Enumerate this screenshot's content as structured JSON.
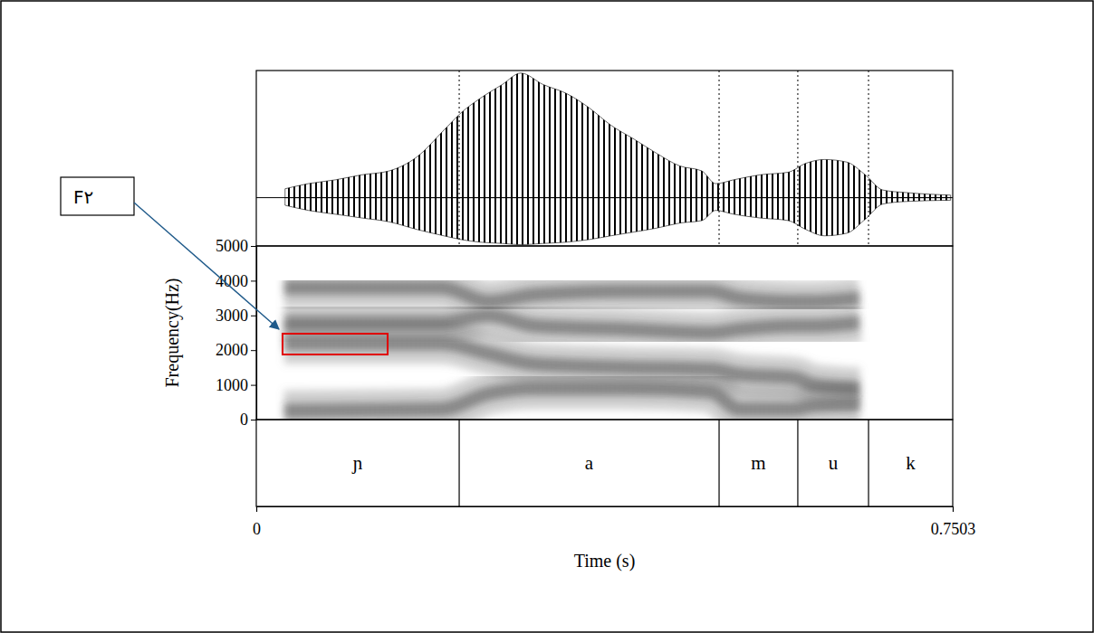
{
  "chart_data": {
    "type": "spectrogram",
    "ylabel": "Frequency(Hz)",
    "xlabel": "Time (s)",
    "xlim": [
      0,
      0.7503
    ],
    "xticks": [
      0,
      0.7503
    ],
    "ylim": [
      0,
      5000
    ],
    "yticks": [
      0,
      1000,
      2000,
      3000,
      4000,
      5000
    ],
    "segments": {
      "labels": [
        "ɲ",
        "a",
        "m",
        "u",
        "k"
      ],
      "boundaries": [
        0.2186,
        0.4986,
        0.5834,
        0.6596
      ]
    },
    "waveform": {
      "ylim": [
        -0.38,
        1
      ],
      "x": [
        0.031,
        0.056,
        0.085,
        0.114,
        0.143,
        0.173,
        0.202,
        0.221,
        0.241,
        0.265,
        0.285,
        0.309,
        0.334,
        0.358,
        0.382,
        0.407,
        0.431,
        0.456,
        0.48,
        0.495,
        0.514,
        0.543,
        0.573,
        0.592,
        0.612,
        0.636,
        0.656,
        0.675,
        0.7,
        0.748
      ],
      "values": [
        0.07,
        0.11,
        0.14,
        0.18,
        0.21,
        0.32,
        0.53,
        0.67,
        0.78,
        0.89,
        0.98,
        0.89,
        0.82,
        0.71,
        0.57,
        0.46,
        0.35,
        0.25,
        0.21,
        0.11,
        0.14,
        0.18,
        0.2,
        0.27,
        0.3,
        0.28,
        0.18,
        0.06,
        0.04,
        0.02
      ],
      "lower": [
        -0.06,
        -0.1,
        -0.13,
        -0.16,
        -0.19,
        -0.25,
        -0.3,
        -0.33,
        -0.35,
        -0.36,
        -0.37,
        -0.36,
        -0.35,
        -0.33,
        -0.3,
        -0.27,
        -0.24,
        -0.2,
        -0.18,
        -0.1,
        -0.13,
        -0.16,
        -0.18,
        -0.25,
        -0.3,
        -0.28,
        -0.17,
        -0.05,
        -0.03,
        -0.02
      ]
    },
    "x": [
      0.03,
      0.2,
      0.25,
      0.3,
      0.4,
      0.49,
      0.52,
      0.58,
      0.6,
      0.65
    ],
    "series": [
      {
        "values": [
          250,
          300,
          750,
          900,
          900,
          800,
          300,
          300,
          400,
          450
        ]
      },
      {
        "values": [
          2200,
          2200,
          1900,
          1600,
          1500,
          1450,
          1300,
          1200,
          1000,
          900
        ]
      },
      {
        "values": [
          2800,
          2800,
          3000,
          2700,
          2600,
          2500,
          2600,
          2700,
          2700,
          2800
        ]
      },
      {
        "values": [
          3800,
          3800,
          3400,
          3600,
          3700,
          3700,
          3500,
          3400,
          3400,
          3500
        ]
      }
    ],
    "annotation": {
      "text": "F٢",
      "x": [
        0.0283,
        0.1415
      ],
      "y": [
        1875,
        2474
      ]
    }
  }
}
